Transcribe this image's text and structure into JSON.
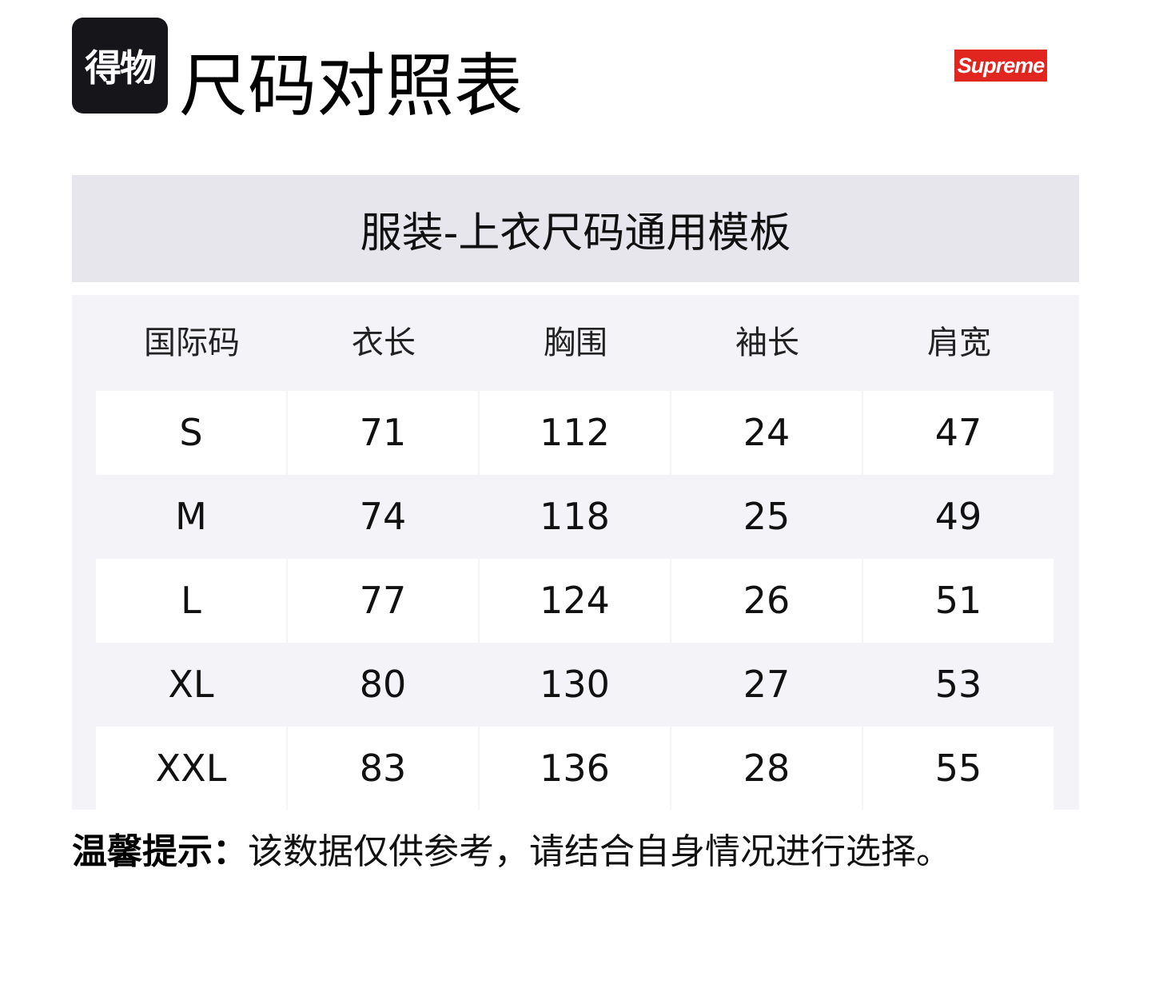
{
  "header": {
    "logo_text": "得物",
    "title": "尺码对照表",
    "brand_logo": "Supreme",
    "brand_color": "#e0261f"
  },
  "band_title": "服装-上衣尺码通用模板",
  "table": {
    "columns": [
      "国际码",
      "衣长",
      "胸围",
      "袖长",
      "肩宽"
    ],
    "rows": [
      [
        "S",
        "71",
        "112",
        "24",
        "47"
      ],
      [
        "M",
        "74",
        "118",
        "25",
        "49"
      ],
      [
        "L",
        "77",
        "124",
        "26",
        "51"
      ],
      [
        "XL",
        "80",
        "130",
        "27",
        "53"
      ],
      [
        "XXL",
        "83",
        "136",
        "28",
        "55"
      ]
    ]
  },
  "note": {
    "label": "温馨提示：",
    "text": "该数据仅供参考，请结合自身情况进行选择。"
  }
}
